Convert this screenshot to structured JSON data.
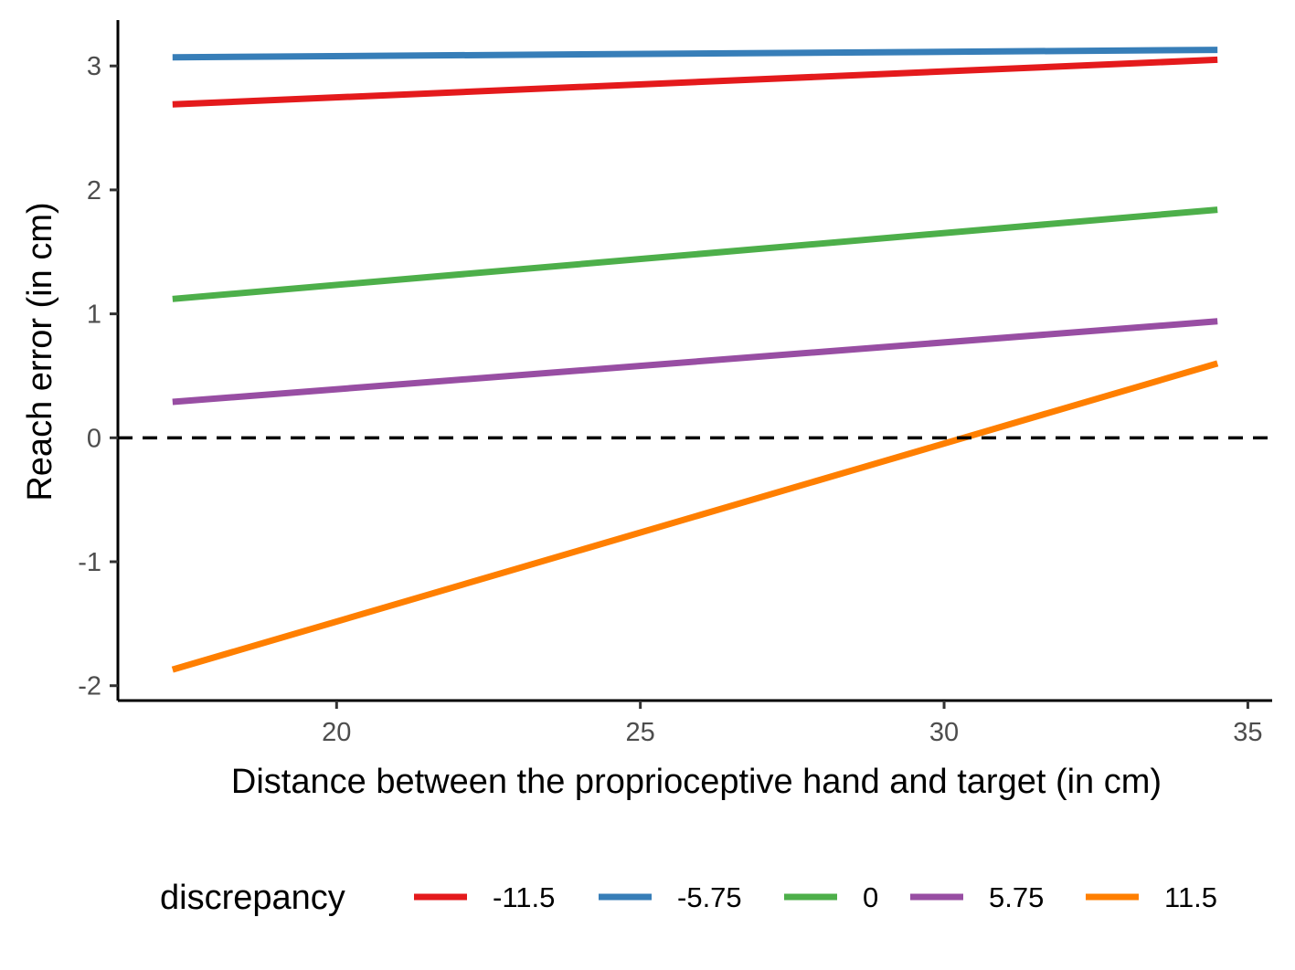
{
  "chart_data": {
    "type": "line",
    "xlabel": "Distance between the proprioceptive hand and target (in cm)",
    "ylabel": "Reach error (in cm)",
    "xlim": [
      16.4,
      35.4
    ],
    "ylim": [
      -2.12,
      3.37
    ],
    "x_ticks": [
      20,
      25,
      30,
      35
    ],
    "y_ticks": [
      -2,
      -1,
      0,
      1,
      2,
      3
    ],
    "x_tick_labels": [
      "20",
      "25",
      "30",
      "35"
    ],
    "y_tick_labels": [
      "-2",
      "-1",
      "0",
      "1",
      "2",
      "3"
    ],
    "reference_line": {
      "y": 0,
      "style": "dashed",
      "color": "#000000"
    },
    "grid": false,
    "legend": {
      "title": "discrepancy",
      "placement": "bottom"
    },
    "series": [
      {
        "name": "-11.5",
        "color": "#E41A1C",
        "x": [
          17.3,
          34.5
        ],
        "y": [
          2.69,
          3.05
        ]
      },
      {
        "name": "-5.75",
        "color": "#377EB8",
        "x": [
          17.3,
          34.5
        ],
        "y": [
          3.07,
          3.13
        ]
      },
      {
        "name": "0",
        "color": "#4DAF4A",
        "x": [
          17.3,
          34.5
        ],
        "y": [
          1.12,
          1.84
        ]
      },
      {
        "name": "5.75",
        "color": "#984EA3",
        "x": [
          17.3,
          34.5
        ],
        "y": [
          0.29,
          0.94
        ]
      },
      {
        "name": "11.5",
        "color": "#FF7F00",
        "x": [
          17.3,
          34.5
        ],
        "y": [
          -1.87,
          0.6
        ]
      }
    ]
  }
}
